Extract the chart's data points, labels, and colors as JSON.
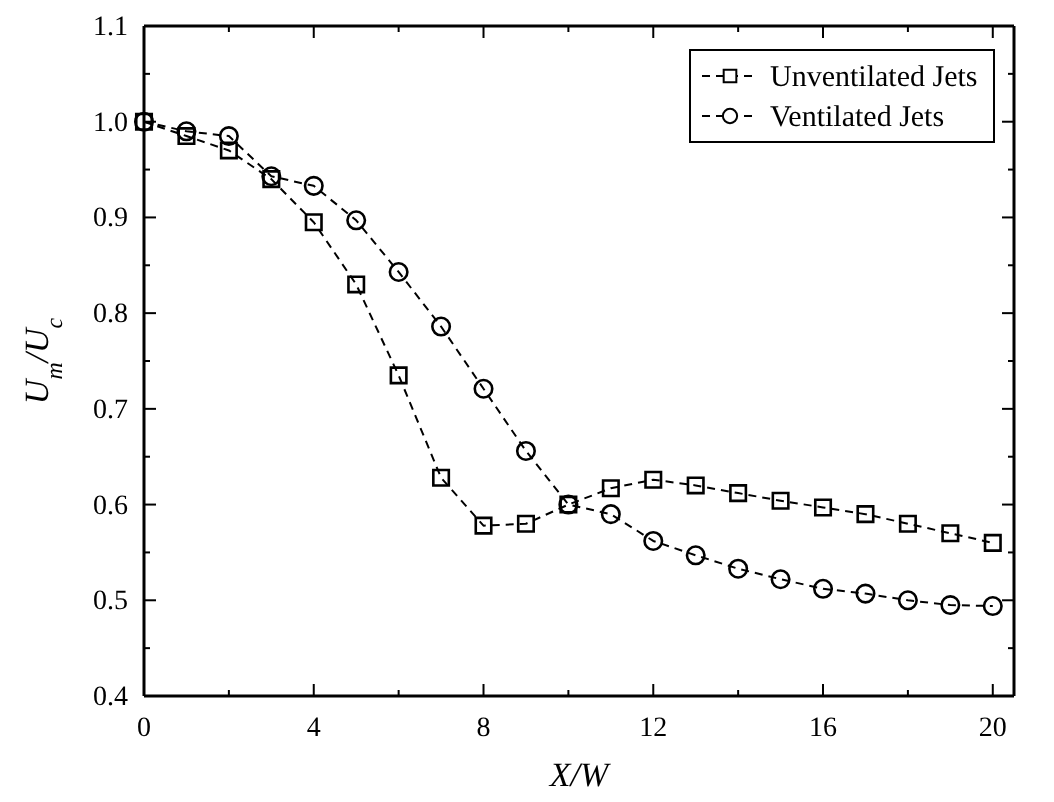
{
  "chart_data": {
    "type": "line",
    "xlabel": "X/W",
    "ylabel": "U$_{m}$/U$_{c}$",
    "x": [
      0,
      1,
      2,
      3,
      4,
      5,
      6,
      7,
      8,
      9,
      10,
      11,
      12,
      13,
      14,
      15,
      16,
      17,
      18,
      19,
      20
    ],
    "series": [
      {
        "name": "Unventilated Jets",
        "color": "#000000",
        "marker": "square",
        "values": [
          1.0,
          0.985,
          0.97,
          0.94,
          0.895,
          0.83,
          0.735,
          0.628,
          0.578,
          0.58,
          0.6,
          0.617,
          0.626,
          0.62,
          0.612,
          0.604,
          0.597,
          0.59,
          0.58,
          0.57,
          0.56
        ]
      },
      {
        "name": "Ventilated Jets",
        "color": "#000000",
        "marker": "circle",
        "values": [
          1.0,
          0.99,
          0.985,
          0.943,
          0.933,
          0.897,
          0.843,
          0.786,
          0.721,
          0.656,
          0.6,
          0.59,
          0.562,
          0.547,
          0.533,
          0.522,
          0.512,
          0.507,
          0.5,
          0.495,
          0.494
        ]
      }
    ],
    "xlim": [
      0,
      20.5
    ],
    "xticks": [
      0,
      4,
      8,
      12,
      16,
      20
    ],
    "ylim": [
      0.4,
      1.1
    ],
    "yticks": [
      {
        "value": 0.4,
        "label": "0.4"
      },
      0.5,
      0.6,
      0.7,
      0.8,
      0.9,
      {
        "value": 1.0,
        "label": "1.0"
      },
      1.1
    ],
    "line_style": "dashed",
    "grid": false,
    "legend": "top right"
  }
}
